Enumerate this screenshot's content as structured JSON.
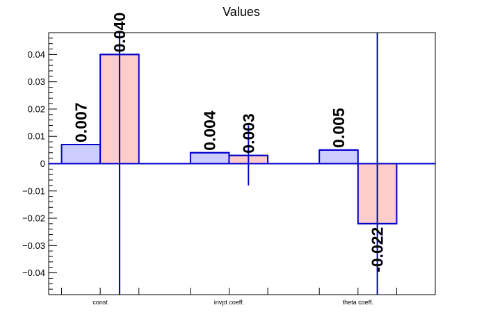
{
  "chart_data": {
    "type": "bar",
    "title": "Values",
    "xlabel": "",
    "ylabel": "",
    "ylim": [
      -0.048,
      0.048
    ],
    "yticks": [
      -0.04,
      -0.03,
      -0.02,
      -0.01,
      0,
      0.01,
      0.02,
      0.03,
      0.04
    ],
    "ytick_labels": [
      "−0.04",
      "−0.03",
      "−0.02",
      "−0.01",
      "0",
      "0.01",
      "0.02",
      "0.03",
      "0.04"
    ],
    "categories": [
      "const",
      "invpt coeff.",
      "theta coeff."
    ],
    "series": [
      {
        "values": [
          0.007,
          0.004,
          0.005
        ],
        "errors": [
          0,
          0,
          0
        ],
        "labels": [
          "0.007",
          "0.004",
          "0.005"
        ],
        "fill": "#ccccff",
        "stroke": "#0000cc"
      },
      {
        "values": [
          0.04,
          0.003,
          -0.022
        ],
        "errors": [
          0.25,
          0.011,
          0.25
        ],
        "labels": [
          "0.040",
          "0.003",
          "-0.022"
        ],
        "fill": "#ffcccc",
        "stroke": "#0000cc"
      }
    ],
    "grid": false,
    "zero_line": true
  }
}
